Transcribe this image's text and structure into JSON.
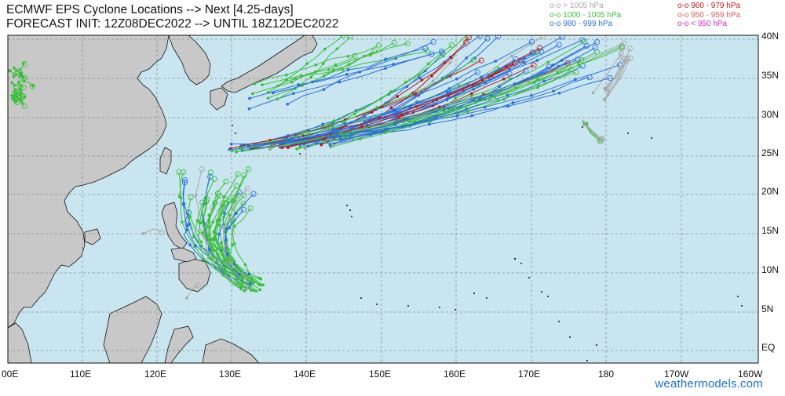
{
  "title": {
    "line1": "ECMWF EPS Cyclone Locations --> Next [4.25-days]",
    "line2": "FORECAST INIT: 12Z08DEC2022 --> UNTIL 18Z12DEC2022"
  },
  "legend": [
    {
      "label": "o-o > 1005 hPa",
      "color": "#a8a8a8",
      "column": "left"
    },
    {
      "label": "o-o 1000 - 1005 hPa",
      "color": "#3cbf3c",
      "column": "left"
    },
    {
      "label": "o-o 980 - 999 hPa",
      "color": "#2a6fdc",
      "column": "left"
    },
    {
      "label": "o-o 960 - 979 hPa",
      "color": "#c01818",
      "column": "right"
    },
    {
      "label": "o-o 950 - 959 hPa",
      "color": "#e05a5a",
      "column": "right"
    },
    {
      "label": "o-o < 950 hPa",
      "color": "#d02ad0",
      "column": "right"
    }
  ],
  "lat_labels": [
    "40N",
    "35N",
    "30N",
    "25N",
    "20N",
    "15N",
    "10N",
    "5N",
    "EQ"
  ],
  "lon_labels": [
    "00E",
    "110E",
    "120E",
    "130E",
    "140E",
    "150E",
    "160E",
    "170E",
    "180",
    "170W",
    "160W"
  ],
  "credit": "weathermodels.com",
  "colors": {
    "ocean": "#c9e6f0",
    "land": "#c8c8c8",
    "coast": "#111111",
    "grid": "#8a8a8a",
    "gray_track": "#a8a8a8",
    "green_track": "#3cbf3c",
    "blue_track": "#2a6fdc",
    "red_track": "#c01818"
  }
}
